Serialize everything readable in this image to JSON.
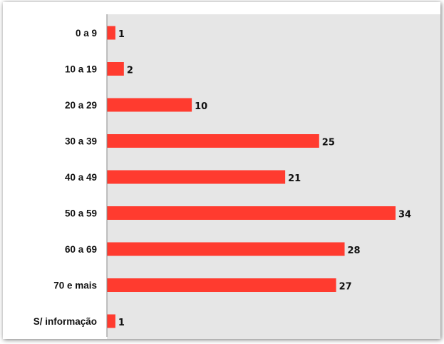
{
  "chart_data": {
    "type": "bar",
    "orientation": "horizontal",
    "categories": [
      "0 a 9",
      "10 a 19",
      "20 a 29",
      "30 a 39",
      "40 a 49",
      "50 a 59",
      "60 a 69",
      "70 e mais",
      "S/ informação"
    ],
    "values": [
      1,
      2,
      10,
      25,
      21,
      34,
      28,
      27,
      1
    ],
    "title": "",
    "xlabel": "",
    "ylabel": "",
    "xlim": [
      0,
      34
    ],
    "grid": false,
    "legend": "none",
    "colors": {
      "bar": "#ff3b2f",
      "plot_background": "#e6e6e6",
      "axis": "#888888"
    }
  }
}
